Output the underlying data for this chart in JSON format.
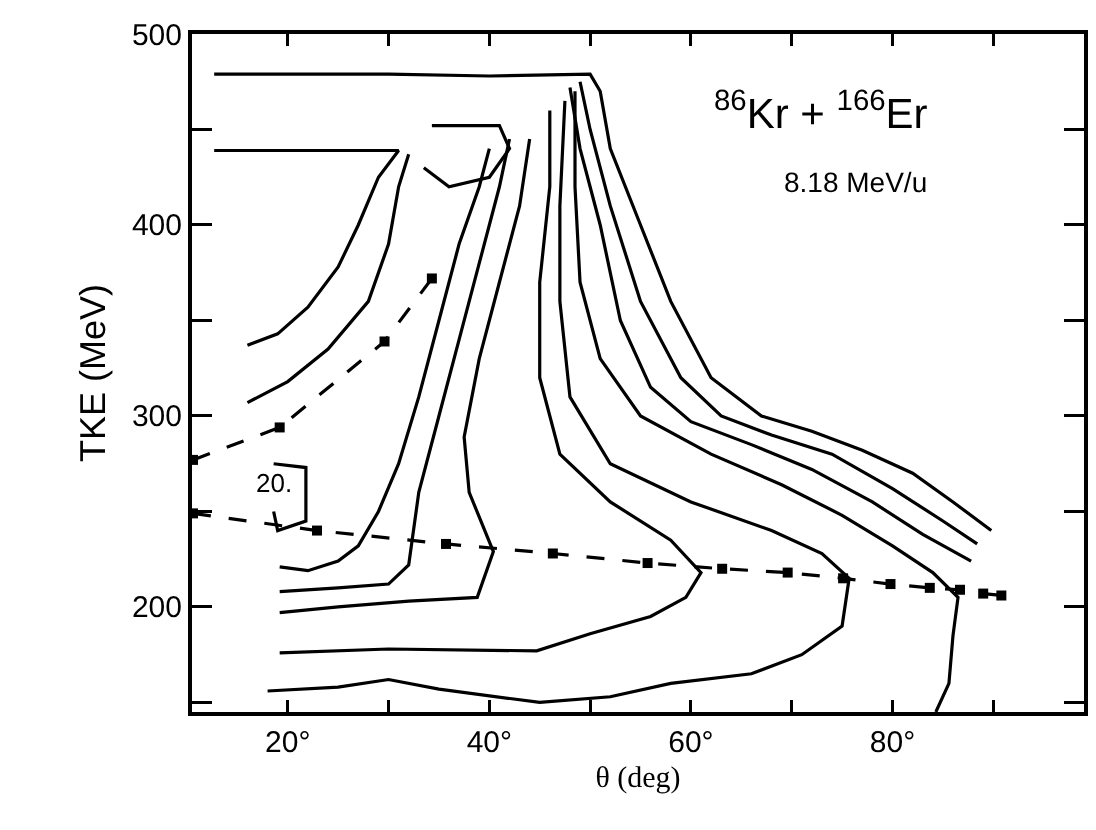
{
  "chart_data": {
    "type": "line",
    "xlabel": "θ (deg)",
    "ylabel": "TKE (MeV)",
    "xlim": [
      10.5,
      99
    ],
    "ylim": [
      145,
      500
    ],
    "xticks": [
      {
        "value": 20,
        "label": "20°"
      },
      {
        "value": 30,
        "label": null
      },
      {
        "value": 40,
        "label": "40°"
      },
      {
        "value": 50,
        "label": null
      },
      {
        "value": 60,
        "label": "60°"
      },
      {
        "value": 70,
        "label": null
      },
      {
        "value": 80,
        "label": "80°"
      },
      {
        "value": 90,
        "label": null
      }
    ],
    "yticks": [
      {
        "value": 150,
        "label": null
      },
      200,
      {
        "value": 250,
        "label": null
      },
      300,
      {
        "value": 350,
        "label": null
      },
      400,
      {
        "value": 450,
        "label": null
      },
      500
    ],
    "grid": false,
    "marker": "none",
    "line_style": "solid",
    "annotations": [
      "$^{86}$Kr + $^{166}$Er",
      "8.18 MeV/u",
      "20."
    ],
    "series": [
      {
        "color": "#000000",
        "x": [
          12.7,
          31,
          29,
          27,
          25,
          22,
          19,
          16
        ],
        "values": [
          439,
          439,
          425,
          400,
          378,
          357,
          343,
          337
        ]
      },
      {
        "color": "#000000",
        "x": [
          16,
          20,
          24,
          28,
          30,
          31,
          32
        ],
        "values": [
          307,
          318,
          335,
          360,
          390,
          420,
          437
        ]
      },
      {
        "color": "#000000",
        "x": [
          19.2,
          22,
          25,
          27,
          29,
          31,
          33,
          35,
          37,
          39,
          40
        ],
        "values": [
          221,
          219,
          224,
          232,
          250,
          275,
          310,
          350,
          390,
          420,
          440
        ]
      },
      {
        "color": "#000000",
        "x": [
          19.2,
          25,
          30,
          32,
          33,
          35,
          37,
          39,
          41,
          42
        ],
        "values": [
          208,
          210,
          212,
          222,
          260,
          300,
          340,
          380,
          420,
          445
        ]
      },
      {
        "color": "#000000",
        "x": [
          19.2,
          25,
          32,
          38.8,
          40.4,
          38,
          37.5,
          39,
          41,
          43,
          44
        ],
        "values": [
          197,
          200,
          203,
          205,
          229,
          260,
          289,
          330,
          370,
          410,
          445
        ]
      },
      {
        "color": "#000000",
        "x": [
          19.2,
          30,
          44.7,
          50,
          56,
          59.5,
          61,
          58,
          52,
          47,
          45,
          45,
          46,
          46
        ],
        "values": [
          176,
          178,
          177,
          186,
          195,
          205,
          218,
          235,
          255,
          280,
          320,
          370,
          420,
          460
        ]
      },
      {
        "color": "#000000",
        "x": [
          18,
          25,
          30,
          35,
          45,
          52,
          58,
          66,
          71,
          75,
          75.7,
          73,
          68,
          60,
          52,
          48,
          47,
          47,
          47.5
        ],
        "values": [
          156,
          158,
          162,
          157,
          150,
          153,
          160,
          165,
          175,
          190,
          215,
          228,
          240,
          255,
          275,
          310,
          360,
          410,
          465
        ]
      },
      {
        "color": "#000000",
        "x": [
          84.3,
          85.6,
          86,
          86.5,
          84,
          80,
          75,
          69,
          62,
          55,
          51,
          49,
          48.5,
          48.5
        ],
        "values": [
          145,
          160,
          185,
          205,
          218,
          232,
          248,
          264,
          280,
          300,
          330,
          370,
          420,
          470
        ]
      },
      {
        "color": "#000000",
        "x": [
          48,
          49,
          51,
          53,
          56,
          60,
          66,
          72,
          78,
          83,
          87.8
        ],
        "values": [
          472,
          440,
          400,
          350,
          315,
          297,
          285,
          272,
          255,
          238,
          224
        ]
      },
      {
        "color": "#000000",
        "x": [
          49,
          50,
          52,
          55,
          59,
          63,
          68,
          74,
          80,
          85,
          88.4
        ],
        "values": [
          475,
          450,
          410,
          360,
          320,
          300,
          290,
          280,
          262,
          245,
          233
        ]
      },
      {
        "color": "#000000",
        "x": [
          12.7,
          30,
          40,
          50,
          51,
          52,
          55,
          58,
          62,
          67,
          72,
          77,
          82,
          86,
          89.8
        ],
        "values": [
          479,
          479,
          478,
          479,
          470,
          440,
          400,
          360,
          320,
          300,
          292,
          282,
          270,
          255,
          240
        ]
      },
      {
        "color": "#000000",
        "x": [
          34.3,
          41,
          42,
          40,
          36,
          33.5
        ],
        "values": [
          452,
          452,
          440,
          425,
          420,
          430
        ]
      },
      {
        "color": "#000000",
        "x": [
          18.6,
          21.8,
          21.8,
          19,
          18.6
        ],
        "values": [
          275,
          273,
          245,
          240,
          250
        ]
      },
      {
        "color": "#000000",
        "line_style": "dashed",
        "marker": "square",
        "x": [
          10.6,
          22.9,
          35.7,
          46.3,
          55.7,
          63.1,
          69.6,
          75.1,
          79.8,
          83.7,
          86.7,
          89,
          90.8
        ],
        "values": [
          249,
          240,
          233,
          228,
          223,
          220,
          218,
          215,
          212,
          210,
          209,
          207,
          206
        ]
      },
      {
        "color": "#000000",
        "line_style": "dashed",
        "marker": "square",
        "x": [
          10.6,
          19.2,
          29.6,
          34.3
        ],
        "values": [
          277,
          294,
          339,
          372
        ]
      }
    ]
  }
}
